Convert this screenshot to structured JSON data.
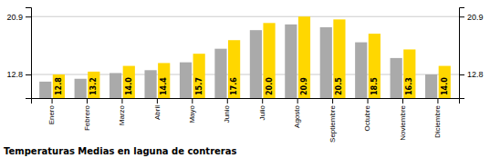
{
  "chart_data": {
    "type": "bar",
    "title": "Temperaturas Medias en laguna de contreras",
    "categories": [
      "Enero",
      "Febrero",
      "Marzo",
      "Abril",
      "Mayo",
      "Junio",
      "Julio",
      "Agosto",
      "Septiembre",
      "Octubre",
      "Noviembre",
      "Diciembre"
    ],
    "series": [
      {
        "color": "#AAAAAA",
        "values": [
          11.8,
          12.2,
          13.0,
          13.4,
          14.5,
          16.4,
          19.0,
          19.8,
          19.4,
          17.3,
          15.1,
          12.8
        ]
      },
      {
        "color": "#FFD700",
        "values": [
          12.8,
          13.2,
          14.0,
          14.4,
          15.7,
          17.6,
          20.0,
          20.9,
          20.5,
          18.5,
          16.3,
          14.0
        ],
        "data_labels": true,
        "value_labels": [
          "12.8",
          "13.2",
          "14.0",
          "14.4",
          "15.7",
          "17.6",
          "20.0",
          "20.9",
          "20.5",
          "18.5",
          "16.3",
          "14.0"
        ]
      }
    ],
    "ylim": [
      9.5,
      22.2
    ],
    "yticks": [
      12.8,
      20.9
    ],
    "grid": true
  }
}
